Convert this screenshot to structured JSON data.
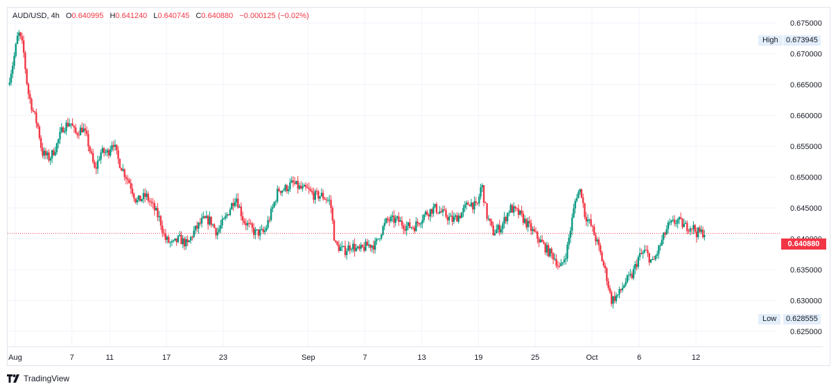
{
  "legend": {
    "symbol": "AUD/USD",
    "interval": "4h",
    "open_label": "O",
    "open": "0.640995",
    "high_label": "H",
    "high": "0.641240",
    "low_label": "L",
    "low": "0.640745",
    "close_label": "C",
    "close": "0.640880",
    "change": "−0.000125 (−0.02%)"
  },
  "markers": {
    "high_label": "High",
    "high_value": "0.673945",
    "low_label": "Low",
    "low_value": "0.628555",
    "last_price": "0.640880"
  },
  "footer": {
    "brand": "TradingView"
  },
  "colors": {
    "up": "#089981",
    "down": "#f23645",
    "grid": "#f0f3fa",
    "last_line": "#f23645"
  },
  "chart_data": {
    "type": "candlestick",
    "interval": "4h",
    "ylim": [
      0.6225,
      0.6775
    ],
    "y_ticks": [
      "0.675000",
      "0.670000",
      "0.665000",
      "0.660000",
      "0.655000",
      "0.650000",
      "0.645000",
      "0.640000",
      "0.635000",
      "0.630000",
      "0.625000"
    ],
    "x_ticks": [
      {
        "label": "Aug",
        "x": 0
      },
      {
        "label": "7",
        "x": 6
      },
      {
        "label": "11",
        "x": 10
      },
      {
        "label": "17",
        "x": 16
      },
      {
        "label": "23",
        "x": 22
      },
      {
        "label": "Sep",
        "x": 31
      },
      {
        "label": "7",
        "x": 37
      },
      {
        "label": "13",
        "x": 43
      },
      {
        "label": "19",
        "x": 49
      },
      {
        "label": "25",
        "x": 55
      },
      {
        "label": "Oct",
        "x": 61
      },
      {
        "label": "6",
        "x": 66
      },
      {
        "label": "12",
        "x": 72
      }
    ],
    "x_range": [
      -0.8,
      80.5
    ],
    "high": 0.673945,
    "low": 0.628555,
    "last": 0.64088,
    "path": [
      [
        -0.6,
        0.665
      ],
      [
        0,
        0.669
      ],
      [
        0.5,
        0.6735
      ],
      [
        1,
        0.671
      ],
      [
        1.5,
        0.664
      ],
      [
        2,
        0.661
      ],
      [
        2.6,
        0.658
      ],
      [
        3,
        0.654
      ],
      [
        3.8,
        0.653
      ],
      [
        4.5,
        0.655
      ],
      [
        5.2,
        0.658
      ],
      [
        6,
        0.659
      ],
      [
        6.5,
        0.657
      ],
      [
        7.3,
        0.658
      ],
      [
        7.8,
        0.656
      ],
      [
        8.6,
        0.651
      ],
      [
        9.2,
        0.654
      ],
      [
        10,
        0.654
      ],
      [
        10.5,
        0.656
      ],
      [
        11,
        0.653
      ],
      [
        11.6,
        0.651
      ],
      [
        12.3,
        0.649
      ],
      [
        13,
        0.646
      ],
      [
        14,
        0.647
      ],
      [
        14.8,
        0.645
      ],
      [
        15.5,
        0.643
      ],
      [
        16,
        0.64
      ],
      [
        16.8,
        0.639
      ],
      [
        17.5,
        0.64
      ],
      [
        18.4,
        0.639
      ],
      [
        19,
        0.641
      ],
      [
        20,
        0.643
      ],
      [
        20.8,
        0.643
      ],
      [
        21.5,
        0.641
      ],
      [
        22.3,
        0.643
      ],
      [
        23.5,
        0.647
      ],
      [
        24.3,
        0.643
      ],
      [
        25.5,
        0.641
      ],
      [
        26.5,
        0.641
      ],
      [
        27.2,
        0.644
      ],
      [
        28,
        0.648
      ],
      [
        28.6,
        0.648
      ],
      [
        29.5,
        0.649
      ],
      [
        30.5,
        0.648
      ],
      [
        31,
        0.648
      ],
      [
        31.8,
        0.647
      ],
      [
        32.6,
        0.647
      ],
      [
        33.5,
        0.646
      ],
      [
        34,
        0.639
      ],
      [
        35,
        0.638
      ],
      [
        35.7,
        0.639
      ],
      [
        36.5,
        0.638
      ],
      [
        37.5,
        0.639
      ],
      [
        38.3,
        0.639
      ],
      [
        38.8,
        0.641
      ],
      [
        39.5,
        0.643
      ],
      [
        40.6,
        0.643
      ],
      [
        41.5,
        0.642
      ],
      [
        42.4,
        0.642
      ],
      [
        43.5,
        0.644
      ],
      [
        44.5,
        0.645
      ],
      [
        45.5,
        0.644
      ],
      [
        46.4,
        0.643
      ],
      [
        47.3,
        0.644
      ],
      [
        48.2,
        0.646
      ],
      [
        49,
        0.645
      ],
      [
        49.5,
        0.649
      ],
      [
        50,
        0.644
      ],
      [
        50.7,
        0.641
      ],
      [
        51.6,
        0.642
      ],
      [
        52.5,
        0.645
      ],
      [
        53.5,
        0.644
      ],
      [
        54.5,
        0.642
      ],
      [
        55.5,
        0.64
      ],
      [
        56.5,
        0.638
      ],
      [
        57.2,
        0.637
      ],
      [
        57.8,
        0.635
      ],
      [
        58.5,
        0.638
      ],
      [
        59.5,
        0.647
      ],
      [
        60,
        0.648
      ],
      [
        60.4,
        0.644
      ],
      [
        61.1,
        0.642
      ],
      [
        61.8,
        0.639
      ],
      [
        62.7,
        0.634
      ],
      [
        63.2,
        0.63
      ],
      [
        64,
        0.631
      ],
      [
        64.7,
        0.633
      ],
      [
        65.4,
        0.634
      ],
      [
        66.1,
        0.637
      ],
      [
        66.8,
        0.638
      ],
      [
        67.6,
        0.636
      ],
      [
        68.4,
        0.639
      ],
      [
        69.2,
        0.642
      ],
      [
        70.2,
        0.643
      ],
      [
        71,
        0.642
      ],
      [
        71.8,
        0.642
      ],
      [
        72.2,
        0.641
      ],
      [
        73,
        0.641
      ]
    ]
  }
}
